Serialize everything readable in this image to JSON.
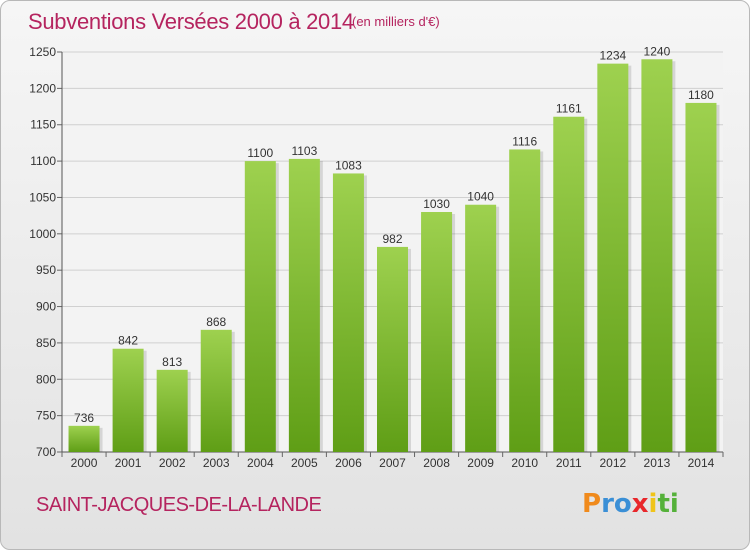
{
  "title": "Subventions Versées 2000 à 2014",
  "subtitle": "(en milliers d'€)",
  "commune": "SAINT-JACQUES-DE-LA-LANDE",
  "logo": {
    "text": "Proxiti",
    "letters": [
      "P",
      "r",
      "o",
      "x",
      "i",
      "t",
      "i"
    ],
    "colors": [
      "#f08a1c",
      "#3a8fd6",
      "#3a8fd6",
      "#e8272b",
      "#f0c419",
      "#55b13a",
      "#55b13a"
    ]
  },
  "colors": {
    "title": "#b5245f",
    "bar_top": "#9ed14f",
    "bar_bottom": "#5f9e16",
    "grid": "#d0d0d0"
  },
  "chart_data": {
    "type": "bar",
    "title": "Subventions Versées 2000 à 2014",
    "subtitle": "(en milliers d'€)",
    "categories": [
      "2000",
      "2001",
      "2002",
      "2003",
      "2004",
      "2005",
      "2006",
      "2007",
      "2008",
      "2009",
      "2010",
      "2011",
      "2012",
      "2013",
      "2014"
    ],
    "values": [
      736,
      842,
      813,
      868,
      1100,
      1103,
      1083,
      982,
      1030,
      1040,
      1116,
      1161,
      1234,
      1240,
      1180
    ],
    "ylim": [
      700,
      1250
    ],
    "yticks": [
      700,
      750,
      800,
      850,
      900,
      950,
      1000,
      1050,
      1100,
      1150,
      1200,
      1250
    ],
    "grid": true,
    "data_labels": true
  }
}
